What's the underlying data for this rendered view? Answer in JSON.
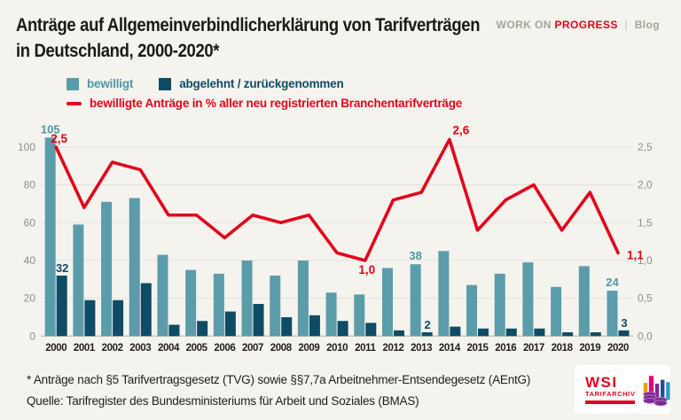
{
  "header": {
    "title_line1": "Anträge auf Allgemeinverbindlicherklärung von Tarifverträgen",
    "title_line2": "in Deutschland, 2000-2020*",
    "brand": {
      "work_on": "WORK ON",
      "progress": "PROGRESS",
      "separator": "|",
      "blog": "Blog"
    }
  },
  "legend": {
    "bewilligt": "bewilligt",
    "abgelehnt": "abgelehnt / zurückgenommen",
    "line": "bewilligte Anträge in % aller neu registrierten Branchentarifverträge"
  },
  "chart_data": {
    "type": "bar+line",
    "title": "Anträge auf Allgemeinverbindlicherklärung von Tarifverträgen in Deutschland, 2000-2020",
    "categories": [
      "2000",
      "2001",
      "2002",
      "2003",
      "2004",
      "2005",
      "2006",
      "2007",
      "2008",
      "2009",
      "2010",
      "2011",
      "2012",
      "2013",
      "2014",
      "2015",
      "2016",
      "2017",
      "2018",
      "2019",
      "2020"
    ],
    "series": [
      {
        "key": "bewilligt",
        "name": "bewilligt",
        "type": "bar",
        "axis": "left",
        "color": "#5b9cab",
        "values": [
          105,
          59,
          71,
          73,
          43,
          35,
          33,
          40,
          32,
          40,
          23,
          22,
          36,
          38,
          45,
          27,
          33,
          39,
          26,
          37,
          24
        ]
      },
      {
        "key": "abgelehnt",
        "name": "abgelehnt / zurückgenommen",
        "type": "bar",
        "axis": "left",
        "color": "#0e4c66",
        "values": [
          32,
          19,
          19,
          28,
          6,
          8,
          13,
          17,
          10,
          11,
          8,
          7,
          3,
          2,
          5,
          4,
          4,
          4,
          2,
          2,
          3
        ]
      },
      {
        "key": "linie",
        "name": "bewilligte Anträge in % aller neu registrierten Branchentarifverträge",
        "type": "line",
        "axis": "right",
        "color": "#e2051c",
        "values": [
          2.5,
          1.7,
          2.3,
          2.2,
          1.6,
          1.6,
          1.3,
          1.6,
          1.5,
          1.6,
          1.1,
          1.0,
          1.8,
          1.9,
          2.6,
          1.4,
          1.8,
          2.0,
          1.4,
          1.9,
          1.1
        ]
      }
    ],
    "left_axis": {
      "ticks": [
        0,
        20,
        40,
        60,
        80,
        100
      ],
      "labels": [
        "0",
        "20",
        "40",
        "60",
        "80",
        "100"
      ],
      "range": [
        0,
        105
      ]
    },
    "right_axis": {
      "ticks": [
        0,
        0.5,
        1,
        1.5,
        2,
        2.5
      ],
      "labels": [
        "0,0",
        "0,5",
        "1,0",
        "1,5",
        "2,0",
        "2,5"
      ],
      "range": [
        0,
        2.6
      ]
    },
    "grid": "horizontal",
    "legend_position": "top-left",
    "annotations": [
      {
        "series": "bewilligt",
        "year": "2000",
        "text": "105"
      },
      {
        "series": "linie",
        "year": "2000",
        "text": "2,5"
      },
      {
        "series": "abgelehnt",
        "year": "2000",
        "text": "32"
      },
      {
        "series": "linie",
        "year": "2011",
        "text": "1,0"
      },
      {
        "series": "bewilligt",
        "year": "2013",
        "text": "38"
      },
      {
        "series": "abgelehnt",
        "year": "2013",
        "text": "2"
      },
      {
        "series": "linie",
        "year": "2014",
        "text": "2,6"
      },
      {
        "series": "bewilligt",
        "year": "2020",
        "text": "24"
      },
      {
        "series": "abgelehnt",
        "year": "2020",
        "text": "3"
      },
      {
        "series": "linie",
        "year": "2020",
        "text": "1,1"
      }
    ]
  },
  "footer": {
    "note": "* Anträge nach §5 Tarifvertragsgesetz (TVG) sowie §§7,7a Arbeitnehmer-Entsendegesetz (AEntG)",
    "source": "Quelle: Tarifregister des Bundesministeriums für Arbeit und Soziales (BMAS)"
  },
  "logo": {
    "wsi": "WSI",
    "tarifarchiv": "TARIFARCHIV"
  },
  "colors": {
    "background": "#f5f3ed",
    "bar_bewilligt": "#5b9cab",
    "bar_abgelehnt": "#0e4c66",
    "line_red": "#e2051c",
    "axis_gray": "#8f8d86",
    "grid": "#e4e2db",
    "baseline": "#c6c4bd",
    "title": "#1a1a18",
    "brand_gray": "#a5a39a"
  }
}
